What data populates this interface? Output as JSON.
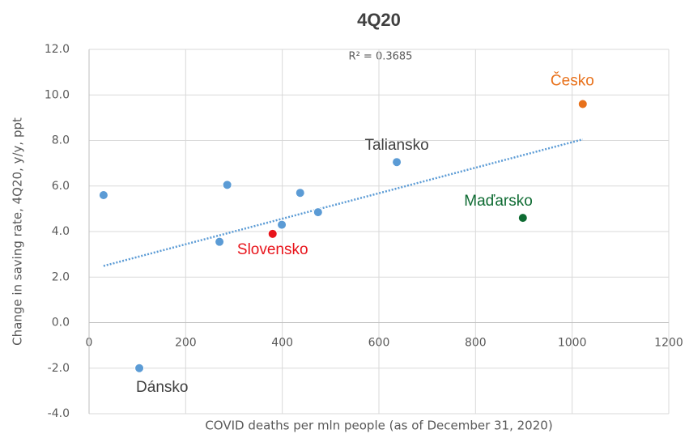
{
  "chart_data": {
    "type": "scatter",
    "title": "4Q20",
    "annotation": "R² = 0.3685",
    "x_label": "COVID deaths per mln people (as of December  31, 2020)",
    "y_label": "Change in saving rate, 4Q20, y/y, ppt",
    "xlim": [
      0,
      1200
    ],
    "xticks": [
      0,
      200,
      400,
      600,
      800,
      1000,
      1200
    ],
    "ylim": [
      -4,
      12
    ],
    "yticks": [
      {
        "value": -4,
        "label": "-4.0"
      },
      {
        "value": -2,
        "label": "-2.0"
      },
      {
        "value": 0,
        "label": "0.0"
      },
      {
        "value": 2,
        "label": "2.0"
      },
      {
        "value": 4,
        "label": "4.0"
      },
      {
        "value": 6,
        "label": "6.0"
      },
      {
        "value": 8,
        "label": "8.0"
      },
      {
        "value": 10,
        "label": "10.0"
      },
      {
        "value": 12,
        "label": "12.0"
      }
    ],
    "grid": true,
    "trendline": true,
    "trendline_color": "#5b9bd5",
    "x": [
      30,
      104,
      270,
      286,
      380,
      399,
      437,
      474,
      637,
      898,
      1022
    ],
    "values": [
      5.6,
      -2.0,
      3.55,
      6.05,
      3.9,
      4.3,
      5.7,
      4.85,
      7.05,
      4.6,
      9.6
    ],
    "labels": [
      null,
      "Dánsko",
      null,
      null,
      "Slovensko",
      null,
      null,
      null,
      "Taliansko",
      "Maďarsko",
      "Česko"
    ],
    "colors": [
      "#5b9bd5",
      "#5b9bd5",
      "#5b9bd5",
      "#5b9bd5",
      "#e8141b",
      "#5b9bd5",
      "#5b9bd5",
      "#5b9bd5",
      "#5b9bd5",
      "#0e6b32",
      "#e8711b"
    ],
    "label_colors": [
      null,
      "#404040",
      null,
      null,
      "#e8141b",
      null,
      null,
      null,
      "#404040",
      "#0e6b32",
      "#e8711b"
    ]
  }
}
